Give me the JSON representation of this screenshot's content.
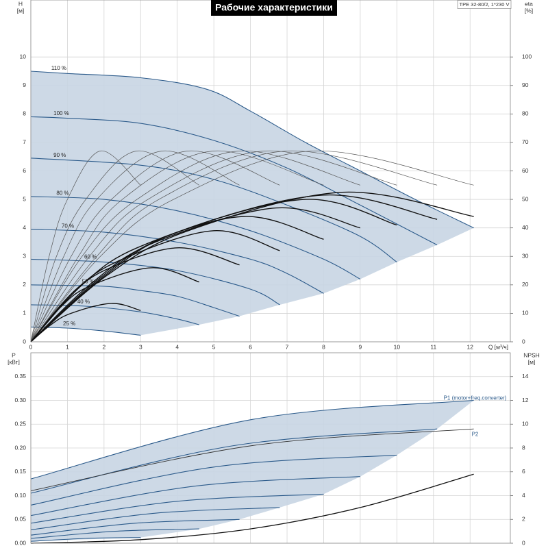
{
  "chart_data": [
    {
      "type": "line",
      "title": "Рабочие характеристики",
      "annotation": "TPE 32-80/2, 1*230 V",
      "xlabel": "Q [м³/ч]",
      "ylabel": "H",
      "yunit": "[м]",
      "y2label": "eta",
      "y2unit": "[%]",
      "xlim": [
        0,
        13.1
      ],
      "xticks": [
        0,
        1,
        2,
        3,
        4,
        5,
        6,
        7,
        8,
        9,
        10,
        11,
        12
      ],
      "ylim": [
        0,
        12
      ],
      "yticks": [
        0,
        1,
        2,
        3,
        4,
        5,
        6,
        7,
        8,
        9,
        10
      ],
      "y2lim": [
        0,
        120
      ],
      "y2ticks": [
        0,
        10,
        20,
        30,
        40,
        50,
        60,
        70,
        80,
        90,
        100
      ],
      "grid": true,
      "area_color": "#c8d5e3",
      "series": [
        {
          "name": "110 %",
          "color": "#2b5a8a",
          "width": 1.1,
          "x": [
            0,
            1,
            3,
            4.8,
            6,
            7.5,
            9,
            10.5,
            12.1
          ],
          "values": [
            9.5,
            9.42,
            9.27,
            8.87,
            8.1,
            7.0,
            6.0,
            5.0,
            4.0
          ]
        },
        {
          "name": "100 %",
          "color": "#2b5a8a",
          "width": 1.1,
          "x": [
            0,
            1,
            3,
            5,
            7,
            9,
            11.1
          ],
          "values": [
            7.9,
            7.85,
            7.67,
            7.07,
            6.1,
            4.8,
            3.4
          ]
        },
        {
          "name": "90 %",
          "color": "#2b5a8a",
          "width": 1.1,
          "x": [
            0,
            3,
            5,
            7,
            9,
            10
          ],
          "values": [
            6.45,
            6.2,
            5.7,
            4.8,
            3.7,
            2.8
          ]
        },
        {
          "name": "80 %",
          "color": "#2b5a8a",
          "width": 1.1,
          "x": [
            0,
            2,
            4,
            6,
            8,
            9
          ],
          "values": [
            5.1,
            5.0,
            4.6,
            3.9,
            2.9,
            2.2
          ]
        },
        {
          "name": "70 %",
          "color": "#2b5a8a",
          "width": 1.1,
          "x": [
            0,
            2,
            4,
            6,
            7,
            8
          ],
          "values": [
            3.95,
            3.85,
            3.5,
            2.9,
            2.4,
            1.7
          ]
        },
        {
          "name": "60 %",
          "color": "#2b5a8a",
          "width": 1.1,
          "x": [
            0,
            2,
            4,
            6,
            6.8
          ],
          "values": [
            2.9,
            2.8,
            2.5,
            1.85,
            1.3
          ]
        },
        {
          "name": "50 %",
          "color": "#2b5a8a",
          "width": 1.1,
          "x": [
            0,
            2,
            3,
            4,
            5,
            5.7
          ],
          "values": [
            2.0,
            1.95,
            1.8,
            1.6,
            1.2,
            0.9
          ]
        },
        {
          "name": "40 %",
          "color": "#2b5a8a",
          "width": 1.1,
          "x": [
            0,
            1.5,
            3,
            4,
            4.6
          ],
          "values": [
            1.3,
            1.25,
            1.05,
            0.8,
            0.6
          ]
        },
        {
          "name": "25 %",
          "color": "#2b5a8a",
          "width": 1.1,
          "x": [
            0,
            1,
            2,
            3
          ],
          "values": [
            0.52,
            0.48,
            0.38,
            0.23
          ]
        },
        {
          "axis": "y2",
          "color": "#555",
          "width": 0.7,
          "x": [
            0,
            1.9,
            3.9,
            7.7,
            12.1
          ],
          "values": [
            0,
            30,
            50,
            67,
            55
          ]
        },
        {
          "axis": "y2",
          "color": "#555",
          "width": 0.7,
          "x": [
            0,
            1.8,
            3.5,
            7,
            11.1
          ],
          "values": [
            0,
            30,
            50,
            67,
            55
          ]
        },
        {
          "axis": "y2",
          "color": "#555",
          "width": 0.7,
          "x": [
            0,
            1.6,
            3.2,
            6.4,
            10
          ],
          "values": [
            0,
            30,
            50,
            67,
            55
          ]
        },
        {
          "axis": "y2",
          "color": "#555",
          "width": 0.7,
          "x": [
            0,
            1.4,
            2.9,
            5.7,
            9
          ],
          "values": [
            0,
            30,
            50,
            67,
            55
          ]
        },
        {
          "axis": "y2",
          "color": "#555",
          "width": 0.7,
          "x": [
            0,
            1.3,
            2.5,
            5,
            8
          ],
          "values": [
            0,
            30,
            50,
            67,
            55
          ]
        },
        {
          "axis": "y2",
          "color": "#555",
          "width": 0.7,
          "x": [
            0,
            1.1,
            2.2,
            4.3,
            6.8
          ],
          "values": [
            0,
            30,
            50,
            67,
            55
          ]
        },
        {
          "axis": "y2",
          "color": "#555",
          "width": 0.7,
          "x": [
            0,
            0.9,
            1.8,
            3.6,
            5.7
          ],
          "values": [
            0,
            30,
            50,
            67,
            55
          ]
        },
        {
          "axis": "y2",
          "color": "#555",
          "width": 0.7,
          "x": [
            0,
            0.7,
            1.5,
            2.9,
            4.6
          ],
          "values": [
            0,
            30,
            50,
            67,
            55
          ]
        },
        {
          "axis": "y2",
          "color": "#555",
          "width": 0.7,
          "x": [
            0,
            0.5,
            1,
            1.9,
            3
          ],
          "values": [
            0,
            30,
            50,
            67,
            55
          ]
        },
        {
          "axis": "y2",
          "color": "#111",
          "width": 1.4,
          "x": [
            0,
            2.1,
            4.3,
            8.5,
            12.1
          ],
          "values": [
            0,
            23.5,
            39,
            52.5,
            44
          ]
        },
        {
          "axis": "y2",
          "color": "#111",
          "width": 1.4,
          "x": [
            0,
            2,
            4,
            8,
            11.1
          ],
          "values": [
            0,
            23,
            38.5,
            51.5,
            43
          ]
        },
        {
          "axis": "y2",
          "color": "#111",
          "width": 1.4,
          "x": [
            0,
            1.9,
            3.8,
            7.5,
            10
          ],
          "values": [
            0,
            22.5,
            37.5,
            50,
            41
          ]
        },
        {
          "axis": "y2",
          "color": "#111",
          "width": 1.4,
          "x": [
            0,
            1.7,
            3.4,
            6.7,
            9
          ],
          "values": [
            0,
            21,
            35,
            47,
            40
          ]
        },
        {
          "axis": "y2",
          "color": "#111",
          "width": 1.4,
          "x": [
            0,
            1.4,
            2.9,
            5.8,
            8
          ],
          "values": [
            0,
            20,
            33,
            44,
            36
          ]
        },
        {
          "axis": "y2",
          "color": "#111",
          "width": 1.4,
          "x": [
            0,
            1.2,
            2.5,
            5,
            6.8
          ],
          "values": [
            0,
            18,
            29,
            39,
            32
          ]
        },
        {
          "axis": "y2",
          "color": "#111",
          "width": 1.4,
          "x": [
            0,
            1,
            2,
            4,
            5.7
          ],
          "values": [
            0,
            15,
            25,
            33,
            27
          ]
        },
        {
          "axis": "y2",
          "color": "#111",
          "width": 1.4,
          "x": [
            0,
            0.8,
            1.6,
            3.3,
            4.6
          ],
          "values": [
            0,
            12,
            19.5,
            26,
            21
          ]
        },
        {
          "axis": "y2",
          "color": "#111",
          "width": 1.4,
          "x": [
            0,
            0.55,
            1.1,
            2.2,
            3
          ],
          "values": [
            0,
            6,
            10,
            13.5,
            11
          ]
        }
      ]
    },
    {
      "type": "line",
      "ylabel": "P",
      "yunit": "[кВт]",
      "y2label": "NPSH",
      "y2unit": "[м]",
      "xlim": [
        0,
        13.1
      ],
      "ylim": [
        0,
        0.4
      ],
      "yticks": [
        {
          "value": 0,
          "label": "0.00"
        },
        0.05,
        {
          "value": 0.1,
          "label": "0.10"
        },
        0.15,
        {
          "value": 0.2,
          "label": "0.20"
        },
        0.25,
        {
          "value": 0.3,
          "label": "0.30"
        },
        0.35
      ],
      "y2lim": [
        0,
        16
      ],
      "y2ticks": [
        0,
        2,
        4,
        6,
        8,
        10,
        12,
        14
      ],
      "grid": true,
      "area_color": "#c8d5e3",
      "series": [
        {
          "name": "P1 (motor+freq.converter)",
          "color": "#2b5a8a",
          "width": 1.1,
          "x": [
            0,
            6.05,
            12.1
          ],
          "values": [
            0.135,
            0.26,
            0.3
          ]
        },
        {
          "color": "#2b5a8a",
          "width": 1.1,
          "x": [
            0,
            5.55,
            11.1
          ],
          "values": [
            0.105,
            0.205,
            0.24
          ]
        },
        {
          "color": "#2b5a8a",
          "width": 1.1,
          "x": [
            0,
            5,
            10
          ],
          "values": [
            0.08,
            0.16,
            0.185
          ]
        },
        {
          "color": "#2b5a8a",
          "width": 1.1,
          "x": [
            0,
            4.5,
            9
          ],
          "values": [
            0.058,
            0.12,
            0.14
          ]
        },
        {
          "color": "#2b5a8a",
          "width": 1.1,
          "x": [
            0,
            4,
            8
          ],
          "values": [
            0.042,
            0.088,
            0.103
          ]
        },
        {
          "color": "#2b5a8a",
          "width": 1.1,
          "x": [
            0,
            3.4,
            6.8
          ],
          "values": [
            0.028,
            0.063,
            0.075
          ]
        },
        {
          "color": "#2b5a8a",
          "width": 1.1,
          "x": [
            0,
            2.85,
            5.7
          ],
          "values": [
            0.017,
            0.042,
            0.05
          ]
        },
        {
          "color": "#2b5a8a",
          "width": 1.1,
          "x": [
            0,
            2.3,
            4.6
          ],
          "values": [
            0.01,
            0.025,
            0.03
          ]
        },
        {
          "color": "#2b5a8a",
          "width": 1.1,
          "x": [
            0,
            1.5,
            3
          ],
          "values": [
            0.004,
            0.01,
            0.012
          ]
        },
        {
          "name": "P2",
          "color": "#333",
          "width": 0.9,
          "x": [
            0,
            6.05,
            12.1
          ],
          "values": [
            0.11,
            0.205,
            0.24
          ]
        },
        {
          "axis": "y2",
          "color": "#111",
          "width": 1.3,
          "x": [
            0,
            3,
            6,
            9,
            12.1
          ],
          "values": [
            0,
            0.3,
            1.2,
            3.0,
            5.8
          ]
        }
      ]
    }
  ]
}
